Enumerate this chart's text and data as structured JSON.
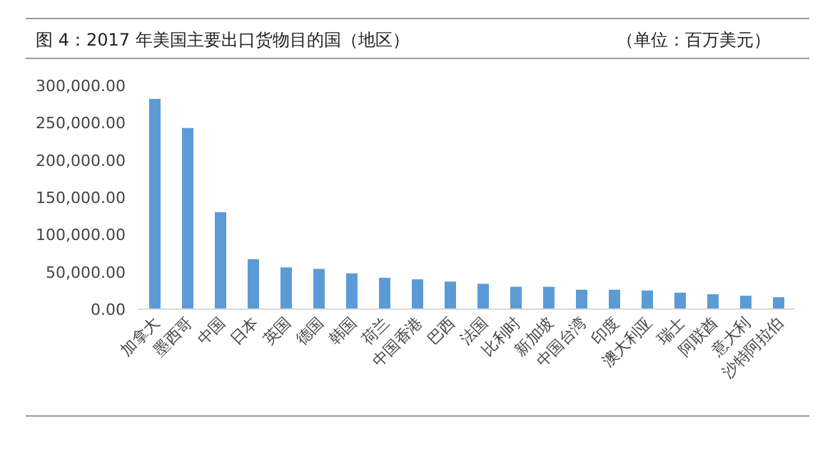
{
  "chart_data": {
    "type": "bar",
    "title": "图 4：2017 年美国主要出口货物目的国（地区）",
    "ylabel": "（单位：百万美元）",
    "categories": [
      "加拿大",
      "墨西哥",
      "中国",
      "日本",
      "英国",
      "德国",
      "韩国",
      "荷兰",
      "中国香港",
      "巴西",
      "法国",
      "比利时",
      "新加坡",
      "中国台湾",
      "印度",
      "澳大利亚",
      "瑞士",
      "阿联酋",
      "意大利",
      "沙特阿拉伯"
    ],
    "values": [
      282000,
      243000,
      130000,
      67000,
      56000,
      54000,
      48000,
      42000,
      40000,
      37000,
      34000,
      30000,
      30000,
      26000,
      26000,
      25000,
      22000,
      20000,
      18000,
      16000
    ],
    "color": "#5b9bd5",
    "ylim": [
      0,
      300000
    ],
    "yticks": [
      {
        "value": 0,
        "label": "0.00"
      },
      {
        "value": 50000,
        "label": "50,000.00"
      },
      {
        "value": 100000,
        "label": "100,000.00"
      },
      {
        "value": 150000,
        "label": "150,000.00"
      },
      {
        "value": 200000,
        "label": "200,000.00"
      },
      {
        "value": 250000,
        "label": "250,000.00"
      },
      {
        "value": 300000,
        "label": "300,000.00"
      }
    ]
  }
}
